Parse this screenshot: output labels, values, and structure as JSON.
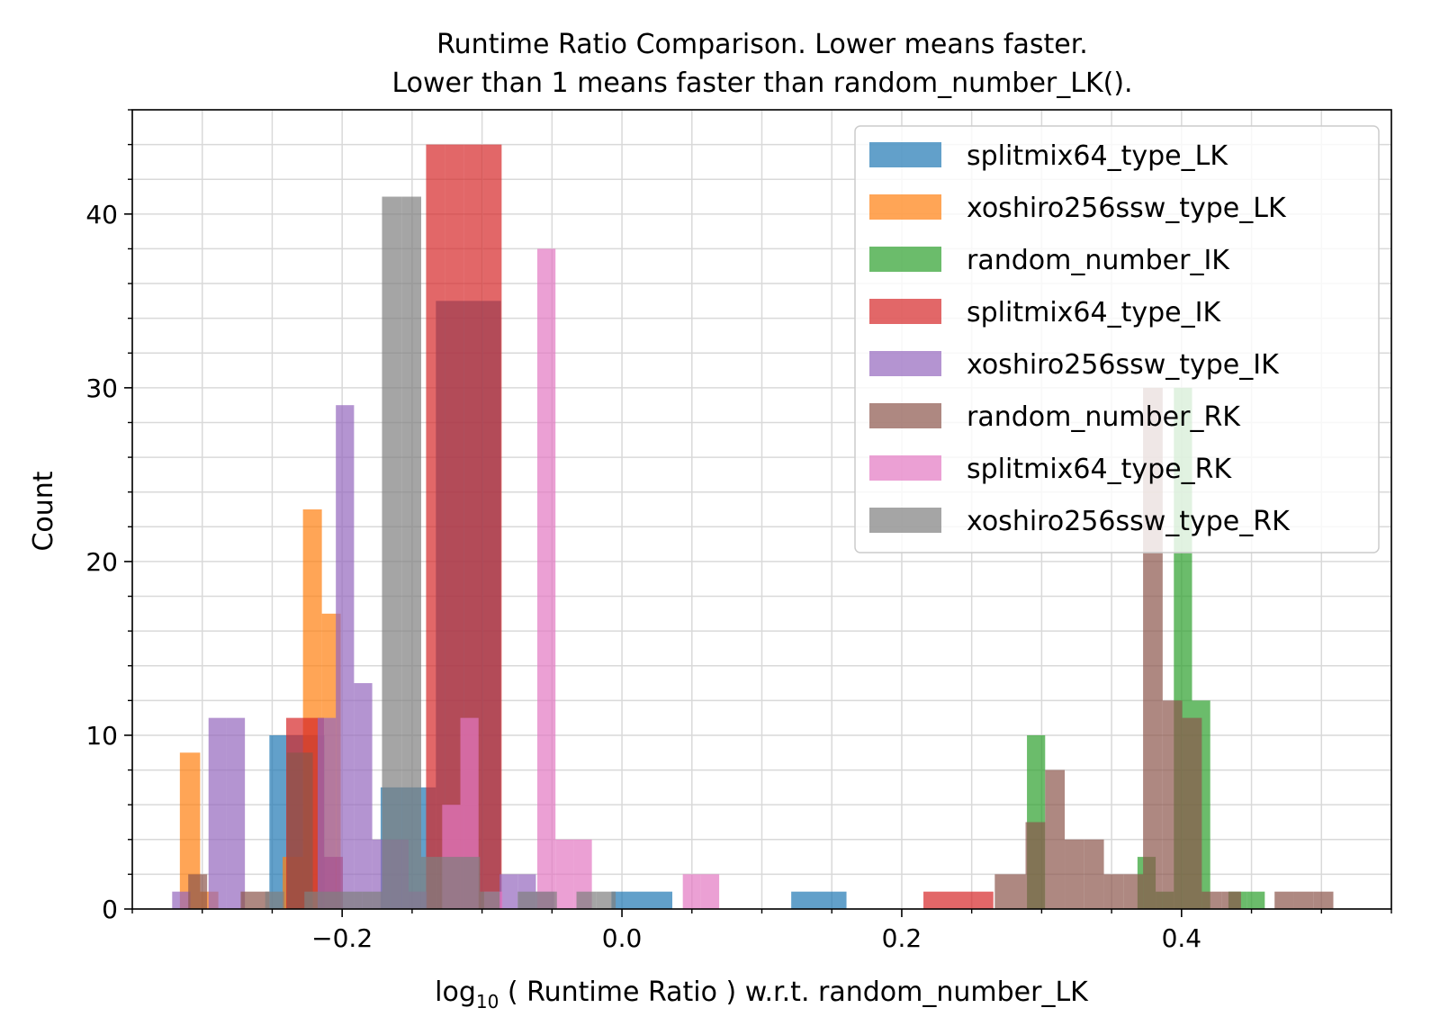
{
  "chart_data": {
    "type": "bar",
    "title_line1": "Runtime Ratio Comparison. Lower means faster.",
    "title_line2": "Lower than 1 means faster than random_number_LK().",
    "xlabel_prefix": "log",
    "xlabel_subscript": "10",
    "xlabel_rest": " ( Runtime Ratio ) w.r.t. random_number_LK",
    "ylabel": "Count",
    "xlim": [
      -0.35,
      0.55
    ],
    "ylim": [
      0,
      46
    ],
    "x_ticks": [
      {
        "value": -0.2,
        "label": "−0.2"
      },
      {
        "value": 0.0,
        "label": "0.0"
      },
      {
        "value": 0.2,
        "label": "0.2"
      },
      {
        "value": 0.4,
        "label": "0.4"
      }
    ],
    "y_ticks": [
      {
        "value": 0,
        "label": "0"
      },
      {
        "value": 10,
        "label": "10"
      },
      {
        "value": 20,
        "label": "20"
      },
      {
        "value": 30,
        "label": "30"
      },
      {
        "value": 40,
        "label": "40"
      }
    ],
    "grid": true,
    "legend_position": "top-right",
    "series": [
      {
        "name": "splitmix64_type_LK",
        "color": "#1f77b4",
        "bars": [
          {
            "x0": -0.252,
            "x1": -0.2125,
            "y": 10
          },
          {
            "x0": -0.1725,
            "x1": -0.133,
            "y": 7
          },
          {
            "x0": -0.133,
            "x1": -0.0865,
            "y": 35
          },
          {
            "x0": -0.0075,
            "x1": 0.036,
            "y": 1
          },
          {
            "x0": 0.121,
            "x1": 0.1605,
            "y": 1
          }
        ]
      },
      {
        "name": "xoshiro256ssw_type_LK",
        "color": "#ff7f0e",
        "bars": [
          {
            "x0": -0.316,
            "x1": -0.3015,
            "y": 9
          },
          {
            "x0": -0.3015,
            "x1": -0.2885,
            "y": 1
          },
          {
            "x0": -0.2425,
            "x1": -0.228,
            "y": 3
          },
          {
            "x0": -0.228,
            "x1": -0.2145,
            "y": 23
          },
          {
            "x0": -0.2145,
            "x1": -0.201,
            "y": 17
          }
        ]
      },
      {
        "name": "random_number_IK",
        "color": "#2ca02c",
        "bars": [
          {
            "x0": 0.2895,
            "x1": 0.3025,
            "y": 10
          },
          {
            "x0": 0.3685,
            "x1": 0.3815,
            "y": 3
          },
          {
            "x0": 0.3815,
            "x1": 0.3945,
            "y": 1
          },
          {
            "x0": 0.3945,
            "x1": 0.4075,
            "y": 30
          },
          {
            "x0": 0.4075,
            "x1": 0.4205,
            "y": 12
          },
          {
            "x0": 0.4335,
            "x1": 0.4465,
            "y": 1
          },
          {
            "x0": 0.4465,
            "x1": 0.4595,
            "y": 1
          }
        ]
      },
      {
        "name": "splitmix64_type_IK",
        "color": "#d62728",
        "bars": [
          {
            "x0": -0.24,
            "x1": -0.2265,
            "y": 11
          },
          {
            "x0": -0.2265,
            "x1": -0.213,
            "y": 11
          },
          {
            "x0": -0.213,
            "x1": -0.1995,
            "y": 3
          },
          {
            "x0": -0.14,
            "x1": -0.1265,
            "y": 44
          },
          {
            "x0": -0.1265,
            "x1": -0.113,
            "y": 44
          },
          {
            "x0": -0.113,
            "x1": -0.0995,
            "y": 44
          },
          {
            "x0": -0.0995,
            "x1": -0.086,
            "y": 44
          },
          {
            "x0": 0.2155,
            "x1": 0.2655,
            "y": 1
          }
        ]
      },
      {
        "name": "xoshiro256ssw_type_IK",
        "color": "#9467bd",
        "bars": [
          {
            "x0": -0.3215,
            "x1": -0.3085,
            "y": 1
          },
          {
            "x0": -0.2955,
            "x1": -0.2825,
            "y": 11
          },
          {
            "x0": -0.2825,
            "x1": -0.2695,
            "y": 11
          },
          {
            "x0": -0.2175,
            "x1": -0.2045,
            "y": 11
          },
          {
            "x0": -0.2045,
            "x1": -0.1915,
            "y": 29
          },
          {
            "x0": -0.1915,
            "x1": -0.1785,
            "y": 13
          },
          {
            "x0": -0.1785,
            "x1": -0.1655,
            "y": 4
          },
          {
            "x0": -0.1655,
            "x1": -0.1525,
            "y": 4
          },
          {
            "x0": -0.1525,
            "x1": -0.1395,
            "y": 1
          },
          {
            "x0": -0.0875,
            "x1": -0.0745,
            "y": 2
          },
          {
            "x0": -0.0745,
            "x1": -0.0615,
            "y": 2
          },
          {
            "x0": -0.0615,
            "x1": -0.0485,
            "y": 1
          }
        ]
      },
      {
        "name": "random_number_RK",
        "color": "#8c564b",
        "bars": [
          {
            "x0": -0.31,
            "x1": -0.2965,
            "y": 2
          },
          {
            "x0": -0.2725,
            "x1": -0.252,
            "y": 1
          },
          {
            "x0": -0.2395,
            "x1": -0.221,
            "y": 9
          },
          {
            "x0": 0.2665,
            "x1": 0.2885,
            "y": 2
          },
          {
            "x0": 0.2885,
            "x1": 0.3025,
            "y": 5
          },
          {
            "x0": 0.3025,
            "x1": 0.3165,
            "y": 8
          },
          {
            "x0": 0.3165,
            "x1": 0.3305,
            "y": 4
          },
          {
            "x0": 0.3305,
            "x1": 0.3445,
            "y": 4
          },
          {
            "x0": 0.3445,
            "x1": 0.3585,
            "y": 2
          },
          {
            "x0": 0.3585,
            "x1": 0.3725,
            "y": 2
          },
          {
            "x0": 0.3725,
            "x1": 0.3865,
            "y": 30
          },
          {
            "x0": 0.3865,
            "x1": 0.4005,
            "y": 12
          },
          {
            "x0": 0.4005,
            "x1": 0.4145,
            "y": 11
          },
          {
            "x0": 0.4145,
            "x1": 0.4285,
            "y": 1
          },
          {
            "x0": 0.4285,
            "x1": 0.4425,
            "y": 1
          },
          {
            "x0": 0.4665,
            "x1": 0.4805,
            "y": 1
          },
          {
            "x0": 0.4805,
            "x1": 0.4945,
            "y": 1
          },
          {
            "x0": 0.4945,
            "x1": 0.5085,
            "y": 1
          }
        ]
      },
      {
        "name": "splitmix64_type_RK",
        "color": "#e377c2",
        "bars": [
          {
            "x0": -0.1285,
            "x1": -0.1155,
            "y": 6
          },
          {
            "x0": -0.1155,
            "x1": -0.1025,
            "y": 11
          },
          {
            "x0": -0.0985,
            "x1": -0.0855,
            "y": 1
          },
          {
            "x0": -0.0605,
            "x1": -0.0475,
            "y": 38
          },
          {
            "x0": -0.0475,
            "x1": -0.0345,
            "y": 4
          },
          {
            "x0": -0.0345,
            "x1": -0.0215,
            "y": 4
          },
          {
            "x0": 0.0435,
            "x1": 0.0565,
            "y": 2
          },
          {
            "x0": 0.0565,
            "x1": 0.0695,
            "y": 2
          }
        ]
      },
      {
        "name": "xoshiro256ssw_type_RK",
        "color": "#7f7f7f",
        "bars": [
          {
            "x0": -0.255,
            "x1": -0.2415,
            "y": 1
          },
          {
            "x0": -0.227,
            "x1": -0.2135,
            "y": 1
          },
          {
            "x0": -0.2135,
            "x1": -0.1995,
            "y": 1
          },
          {
            "x0": -0.1995,
            "x1": -0.1855,
            "y": 1
          },
          {
            "x0": -0.1855,
            "x1": -0.1715,
            "y": 1
          },
          {
            "x0": -0.1715,
            "x1": -0.1575,
            "y": 41
          },
          {
            "x0": -0.1575,
            "x1": -0.1435,
            "y": 41
          },
          {
            "x0": -0.1435,
            "x1": -0.1295,
            "y": 3
          },
          {
            "x0": -0.1295,
            "x1": -0.1155,
            "y": 3
          },
          {
            "x0": -0.1155,
            "x1": -0.1015,
            "y": 3
          },
          {
            "x0": -0.1015,
            "x1": -0.0875,
            "y": 1
          },
          {
            "x0": -0.0745,
            "x1": -0.0605,
            "y": 1
          },
          {
            "x0": -0.0605,
            "x1": -0.0465,
            "y": 1
          },
          {
            "x0": -0.0325,
            "x1": -0.0185,
            "y": 1
          },
          {
            "x0": -0.0185,
            "x1": -0.0045,
            "y": 1
          }
        ]
      }
    ]
  }
}
